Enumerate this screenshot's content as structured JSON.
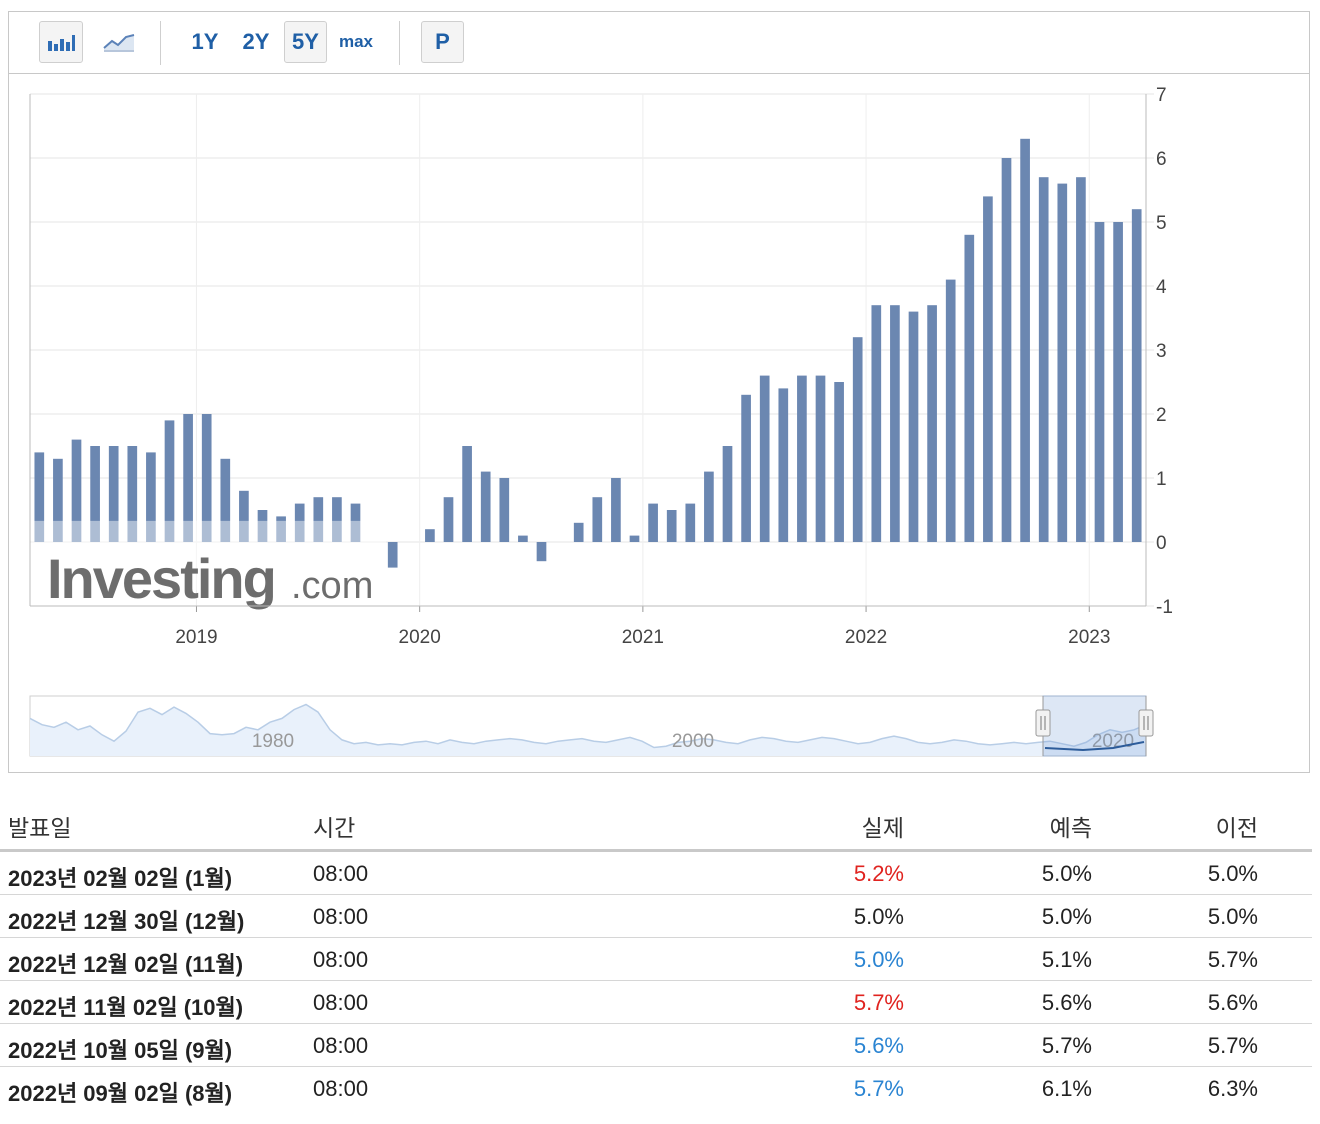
{
  "toolbar": {
    "bar_chart_icon": "bar-chart-icon",
    "line_chart_icon": "line-chart-icon",
    "ranges": [
      "1Y",
      "2Y",
      "5Y",
      "max"
    ],
    "selected_range": "5Y",
    "p_label": "P"
  },
  "watermark": {
    "brand": "Investing",
    "suffix": ".com"
  },
  "chart_data": {
    "type": "bar",
    "color": "#6b87b1",
    "ylim": [
      -1,
      7
    ],
    "y_ticks": [
      7,
      6,
      5,
      4,
      3,
      2,
      1,
      0,
      -1
    ],
    "x_ticks": [
      "2019",
      "2020",
      "2021",
      "2022",
      "2023"
    ],
    "grid": true,
    "y_axis_side": "right",
    "start_month": "2018-04",
    "values": [
      1.4,
      1.3,
      1.6,
      1.5,
      1.5,
      1.5,
      1.4,
      1.9,
      2.0,
      2.0,
      1.3,
      0.8,
      0.5,
      0.4,
      0.6,
      0.7,
      0.7,
      0.6,
      null,
      -0.4,
      null,
      0.2,
      0.7,
      1.5,
      1.1,
      1.0,
      0.1,
      -0.3,
      null,
      0.3,
      0.7,
      1.0,
      0.1,
      0.6,
      0.5,
      0.6,
      1.1,
      1.5,
      2.3,
      2.6,
      2.4,
      2.6,
      2.6,
      2.5,
      3.2,
      3.7,
      3.7,
      3.6,
      3.7,
      4.1,
      4.8,
      5.4,
      6.0,
      6.3,
      5.7,
      5.6,
      5.7,
      5.0,
      5.0,
      5.2
    ]
  },
  "navigator": {
    "labels": [
      "1980",
      "2000",
      "2020"
    ],
    "history": [
      2.5,
      2.0,
      1.8,
      2.2,
      1.6,
      1.9,
      1.2,
      0.7,
      1.5,
      3.0,
      3.3,
      2.8,
      3.4,
      2.9,
      2.2,
      1.3,
      1.2,
      1.3,
      1.8,
      1.6,
      2.2,
      2.5,
      3.2,
      3.6,
      3.0,
      1.6,
      0.8,
      0.5,
      0.6,
      0.4,
      0.5,
      0.4,
      0.6,
      0.7,
      0.5,
      0.8,
      0.6,
      0.5,
      0.7,
      0.8,
      0.9,
      0.8,
      0.6,
      0.5,
      0.7,
      0.8,
      0.9,
      0.7,
      0.6,
      0.8,
      1.0,
      0.7,
      0.2,
      0.3,
      0.6,
      0.7,
      0.9,
      0.8,
      0.6,
      0.5,
      0.8,
      1.0,
      0.9,
      0.7,
      0.6,
      0.8,
      1.0,
      0.9,
      0.7,
      0.5,
      0.6,
      0.9,
      1.1,
      0.9,
      0.6,
      0.5,
      0.6,
      0.8,
      0.7,
      0.5,
      0.4,
      0.5,
      0.6,
      0.5,
      0.6,
      0.7,
      0.5,
      0.3,
      0.6,
      1.2,
      1.6,
      1.4,
      1.6,
      2.0
    ]
  },
  "table": {
    "headers": {
      "date": "발표일",
      "time": "시간",
      "actual": "실제",
      "forecast": "예측",
      "previous": "이전"
    },
    "rows": [
      {
        "date": "2023년 02월 02일 (1월)",
        "time": "08:00",
        "actual": "5.2%",
        "actual_trend": "up",
        "forecast": "5.0%",
        "previous": "5.0%"
      },
      {
        "date": "2022년 12월 30일 (12월)",
        "time": "08:00",
        "actual": "5.0%",
        "actual_trend": "neutral",
        "forecast": "5.0%",
        "previous": "5.0%"
      },
      {
        "date": "2022년 12월 02일 (11월)",
        "time": "08:00",
        "actual": "5.0%",
        "actual_trend": "down",
        "forecast": "5.1%",
        "previous": "5.7%"
      },
      {
        "date": "2022년 11월 02일 (10월)",
        "time": "08:00",
        "actual": "5.7%",
        "actual_trend": "up",
        "forecast": "5.6%",
        "previous": "5.6%"
      },
      {
        "date": "2022년 10월 05일 (9월)",
        "time": "08:00",
        "actual": "5.6%",
        "actual_trend": "down",
        "forecast": "5.7%",
        "previous": "5.7%"
      },
      {
        "date": "2022년 09월 02일 (8월)",
        "time": "08:00",
        "actual": "5.7%",
        "actual_trend": "down",
        "forecast": "6.1%",
        "previous": "6.3%"
      }
    ]
  }
}
